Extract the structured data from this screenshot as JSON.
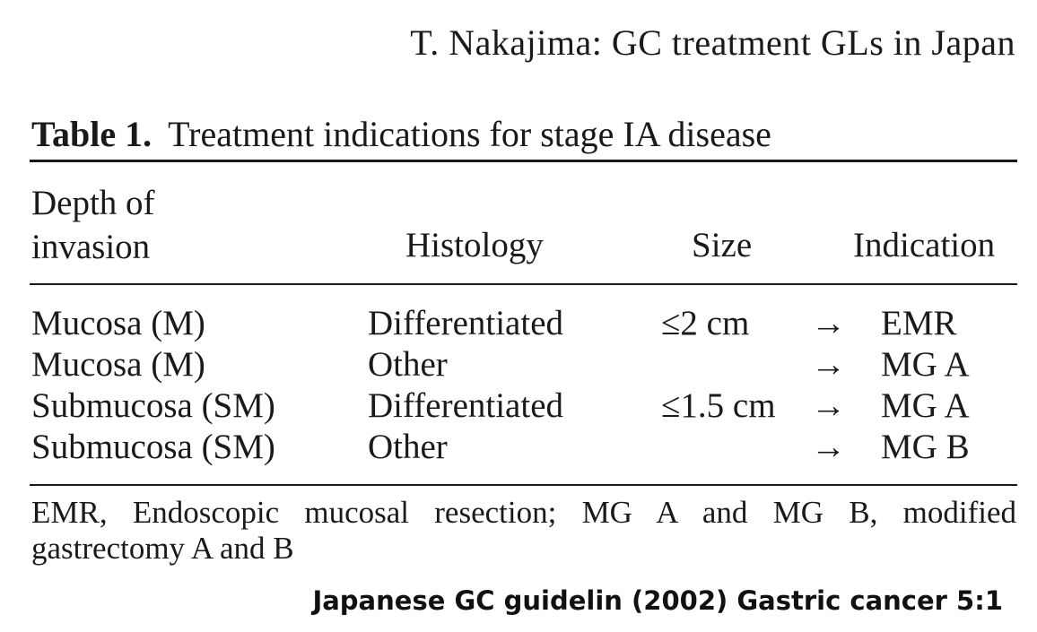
{
  "running_head": "T. Nakajima: GC treatment GLs in Japan",
  "table": {
    "label": "Table 1.",
    "caption": "Treatment indications for stage IA disease",
    "headers": {
      "depth_line1": "Depth of",
      "depth_line2": "invasion",
      "histology": "Histology",
      "size": "Size",
      "indication": "Indication"
    },
    "rows": [
      {
        "depth": "Mucosa (M)",
        "histology": "Differentiated",
        "size": "≤2 cm",
        "arrow": "→",
        "indication": "EMR"
      },
      {
        "depth": "Mucosa (M)",
        "histology": "Other",
        "size": "",
        "arrow": "→",
        "indication": "MG A"
      },
      {
        "depth": "Submucosa (SM)",
        "histology": "Differentiated",
        "size": "≤1.5 cm",
        "arrow": "→",
        "indication": "MG A"
      },
      {
        "depth": "Submucosa (SM)",
        "histology": "Other",
        "size": "",
        "arrow": "→",
        "indication": "MG B"
      }
    ],
    "footnote": "EMR, Endoscopic mucosal resection; MG A and MG B, modified gastrectomy A and B"
  },
  "citation": "Japanese GC guidelin (2002) Gastric cancer 5:1"
}
